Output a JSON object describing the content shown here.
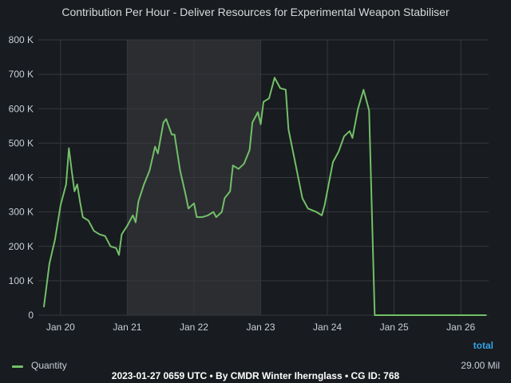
{
  "chart_data": {
    "type": "line",
    "title": "Contribution Per Hour - Deliver Resources for Experimental Weapon Stabiliser",
    "y_ticks": [
      "0",
      "100 K",
      "200 K",
      "300 K",
      "400 K",
      "500 K",
      "600 K",
      "700 K",
      "800 K"
    ],
    "x_ticks": [
      "Jan 20",
      "Jan 21",
      "Jan 22",
      "Jan 23",
      "Jan 24",
      "Jan 25",
      "Jan 26"
    ],
    "ylim": [
      0,
      800000
    ],
    "xlim": [
      "2023-01-19 16:00",
      "2023-01-26 10:00"
    ],
    "grid": true,
    "highlight_range": [
      "2023-01-21 00:00",
      "2023-01-23 00:00"
    ],
    "series": [
      {
        "name": "Quantity",
        "color": "#73bf69",
        "points": [
          [
            "2023-01-19 18:00",
            25000
          ],
          [
            "2023-01-19 20:00",
            150000
          ],
          [
            "2023-01-19 22:00",
            220000
          ],
          [
            "2023-01-20 00:00",
            320000
          ],
          [
            "2023-01-20 02:00",
            380000
          ],
          [
            "2023-01-20 03:00",
            485000
          ],
          [
            "2023-01-20 04:00",
            420000
          ],
          [
            "2023-01-20 05:00",
            360000
          ],
          [
            "2023-01-20 06:00",
            380000
          ],
          [
            "2023-01-20 07:00",
            330000
          ],
          [
            "2023-01-20 08:00",
            285000
          ],
          [
            "2023-01-20 10:00",
            275000
          ],
          [
            "2023-01-20 12:00",
            245000
          ],
          [
            "2023-01-20 14:00",
            235000
          ],
          [
            "2023-01-20 16:00",
            230000
          ],
          [
            "2023-01-20 18:00",
            200000
          ],
          [
            "2023-01-20 20:00",
            195000
          ],
          [
            "2023-01-20 21:00",
            175000
          ],
          [
            "2023-01-20 22:00",
            235000
          ],
          [
            "2023-01-21 00:00",
            260000
          ],
          [
            "2023-01-21 02:00",
            290000
          ],
          [
            "2023-01-21 03:00",
            270000
          ],
          [
            "2023-01-21 04:00",
            330000
          ],
          [
            "2023-01-21 06:00",
            380000
          ],
          [
            "2023-01-21 08:00",
            420000
          ],
          [
            "2023-01-21 10:00",
            490000
          ],
          [
            "2023-01-21 11:00",
            470000
          ],
          [
            "2023-01-21 13:00",
            560000
          ],
          [
            "2023-01-21 14:00",
            570000
          ],
          [
            "2023-01-21 16:00",
            525000
          ],
          [
            "2023-01-21 17:00",
            525000
          ],
          [
            "2023-01-21 19:00",
            420000
          ],
          [
            "2023-01-21 21:00",
            350000
          ],
          [
            "2023-01-21 22:00",
            310000
          ],
          [
            "2023-01-22 00:00",
            325000
          ],
          [
            "2023-01-22 01:00",
            285000
          ],
          [
            "2023-01-22 03:00",
            285000
          ],
          [
            "2023-01-22 05:00",
            290000
          ],
          [
            "2023-01-22 07:00",
            300000
          ],
          [
            "2023-01-22 08:00",
            285000
          ],
          [
            "2023-01-22 10:00",
            300000
          ],
          [
            "2023-01-22 11:00",
            340000
          ],
          [
            "2023-01-22 13:00",
            360000
          ],
          [
            "2023-01-22 14:00",
            435000
          ],
          [
            "2023-01-22 16:00",
            425000
          ],
          [
            "2023-01-22 18:00",
            440000
          ],
          [
            "2023-01-22 20:00",
            480000
          ],
          [
            "2023-01-22 21:00",
            560000
          ],
          [
            "2023-01-22 23:00",
            590000
          ],
          [
            "2023-01-23 00:00",
            555000
          ],
          [
            "2023-01-23 01:00",
            620000
          ],
          [
            "2023-01-23 03:00",
            630000
          ],
          [
            "2023-01-23 05:00",
            690000
          ],
          [
            "2023-01-23 07:00",
            660000
          ],
          [
            "2023-01-23 09:00",
            655000
          ],
          [
            "2023-01-23 10:00",
            540000
          ],
          [
            "2023-01-23 13:00",
            420000
          ],
          [
            "2023-01-23 15:00",
            340000
          ],
          [
            "2023-01-23 17:00",
            310000
          ],
          [
            "2023-01-23 20:00",
            300000
          ],
          [
            "2023-01-23 22:00",
            290000
          ],
          [
            "2023-01-23 23:00",
            320000
          ],
          [
            "2023-01-24 02:00",
            445000
          ],
          [
            "2023-01-24 04:00",
            475000
          ],
          [
            "2023-01-24 06:00",
            520000
          ],
          [
            "2023-01-24 08:00",
            535000
          ],
          [
            "2023-01-24 09:00",
            515000
          ],
          [
            "2023-01-24 11:00",
            600000
          ],
          [
            "2023-01-24 13:00",
            655000
          ],
          [
            "2023-01-24 15:00",
            595000
          ],
          [
            "2023-01-24 17:00",
            0
          ],
          [
            "2023-01-26 09:00",
            0
          ]
        ]
      }
    ]
  },
  "legend": {
    "items": [
      {
        "label": "Quantity",
        "color": "#73bf69"
      }
    ],
    "stat_header": "total",
    "stat_value": "29.00 Mil"
  },
  "footer": "2023-01-27 0659 UTC • By CMDR Winter Iherngl​ass • CG ID: 768"
}
